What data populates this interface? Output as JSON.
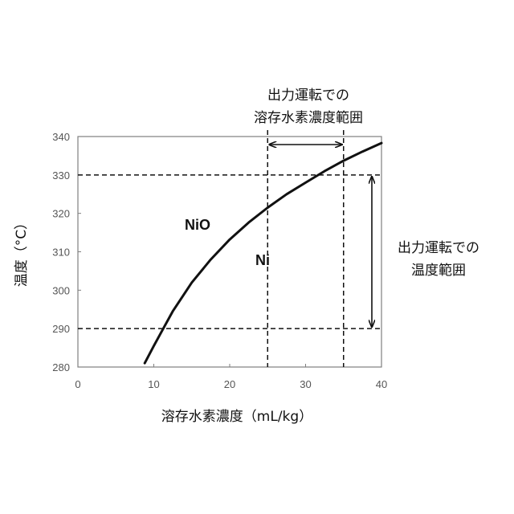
{
  "chart_data": {
    "type": "line",
    "xlabel": "溶存水素濃度（mL/kg）",
    "ylabel": "温度（°C）",
    "xlim": [
      0,
      40
    ],
    "ylim": [
      280,
      340
    ],
    "xticks": [
      0,
      10,
      20,
      30,
      40
    ],
    "yticks": [
      280,
      290,
      300,
      310,
      320,
      330,
      340
    ],
    "grid": false,
    "series": [
      {
        "x": [
          8.8,
          10,
          11.3,
          12.5,
          15,
          17.5,
          20,
          22.5,
          25,
          27.5,
          30,
          32.5,
          35,
          37.5,
          40
        ],
        "y": [
          281,
          285.5,
          290.2,
          294.5,
          302,
          308,
          313.2,
          317.6,
          321.5,
          325,
          328,
          331,
          333.7,
          336.1,
          338.3
        ]
      }
    ],
    "regions": {
      "upper": "NiO",
      "lower": "Ni"
    },
    "operating_ranges": {
      "hydrogen": {
        "label_line1": "出力運転での",
        "label_line2": "溶存水素濃度範囲",
        "range": [
          25,
          35
        ]
      },
      "temperature": {
        "label_line1": "出力運転での",
        "label_line2": "温度範囲",
        "range": [
          290,
          330
        ]
      }
    },
    "colors": {
      "curve": "#111111",
      "frame": "#7f7f7f",
      "dashed": "#111111"
    }
  }
}
